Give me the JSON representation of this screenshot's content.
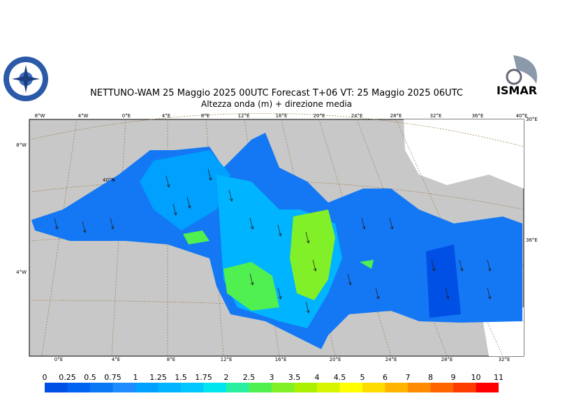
{
  "header": {
    "title": "NETTUNO-WAM  25   Maggio  2025 00UTC Forecast T+06 VT: 25   Maggio  2025 06UTC",
    "subtitle": "Altezza onda (m) + direzione media",
    "logo_text": "ISMAR"
  },
  "map": {
    "top_lon_labels": [
      "8°W",
      "4°W",
      "0°E",
      "4°E",
      "8°E",
      "12°E",
      "16°E",
      "20°E",
      "24°E",
      "28°E",
      "32°E",
      "36°E",
      "40°E"
    ],
    "bottom_lon_labels": [
      "0°E",
      "4°E",
      "8°E",
      "12°E",
      "16°E",
      "20°E",
      "24°E",
      "28°E",
      "32°E"
    ],
    "left_lat_labels": [
      "8°W",
      "4°W"
    ],
    "right_labels": [
      "30°E",
      "36°E"
    ],
    "inner_labels": [
      "40°N"
    ]
  },
  "colorbar": {
    "levels": [
      "0",
      "0.25",
      "0.5",
      "0.75",
      "1",
      "1.25",
      "1.5",
      "1.75",
      "2",
      "2.5",
      "3",
      "3.5",
      "4",
      "4.5",
      "5",
      "6",
      "7",
      "8",
      "9",
      "10",
      "11"
    ],
    "colors": [
      "#0050e6",
      "#0064f0",
      "#0a78f5",
      "#1e8cff",
      "#00a0ff",
      "#00b4ff",
      "#00c8ff",
      "#00e6ee",
      "#28f0a0",
      "#50f050",
      "#82f028",
      "#aaf000",
      "#d7f500",
      "#ffff00",
      "#ffdc00",
      "#ffb400",
      "#ff8c00",
      "#ff6400",
      "#ff3c00",
      "#ff0000"
    ]
  }
}
